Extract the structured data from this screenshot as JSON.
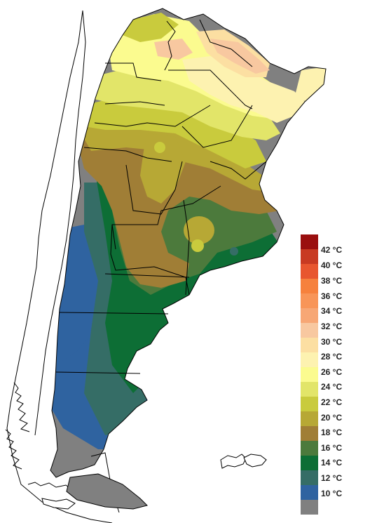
{
  "map": {
    "region": "Argentina",
    "outline_color": "#000000",
    "ocean_color": "#ffffff"
  },
  "legend": {
    "items": [
      {
        "label": "",
        "color": "#9a0f0f"
      },
      {
        "label": "42 °C",
        "color": "#c83a22"
      },
      {
        "label": "40 °C",
        "color": "#e8562f"
      },
      {
        "label": "38 °C",
        "color": "#f6813d"
      },
      {
        "label": "36 °C",
        "color": "#f89558"
      },
      {
        "label": "34 °C",
        "color": "#f7a775"
      },
      {
        "label": "32 °C",
        "color": "#f8c8a0"
      },
      {
        "label": "30 °C",
        "color": "#fcdfa2"
      },
      {
        "label": "28 °C",
        "color": "#fdf2b0"
      },
      {
        "label": "26 °C",
        "color": "#fbfb8f"
      },
      {
        "label": "24 °C",
        "color": "#e2e569"
      },
      {
        "label": "22 °C",
        "color": "#c9cb3d"
      },
      {
        "label": "20 °C",
        "color": "#b7a835"
      },
      {
        "label": "18 °C",
        "color": "#a07e36"
      },
      {
        "label": "16 °C",
        "color": "#4c7a3c"
      },
      {
        "label": "14 °C",
        "color": "#0d6e35"
      },
      {
        "label": "12 °C",
        "color": "#356d66"
      },
      {
        "label": "10 °C",
        "color": "#2f63a0"
      },
      {
        "label": "",
        "color": "#808080"
      }
    ]
  }
}
